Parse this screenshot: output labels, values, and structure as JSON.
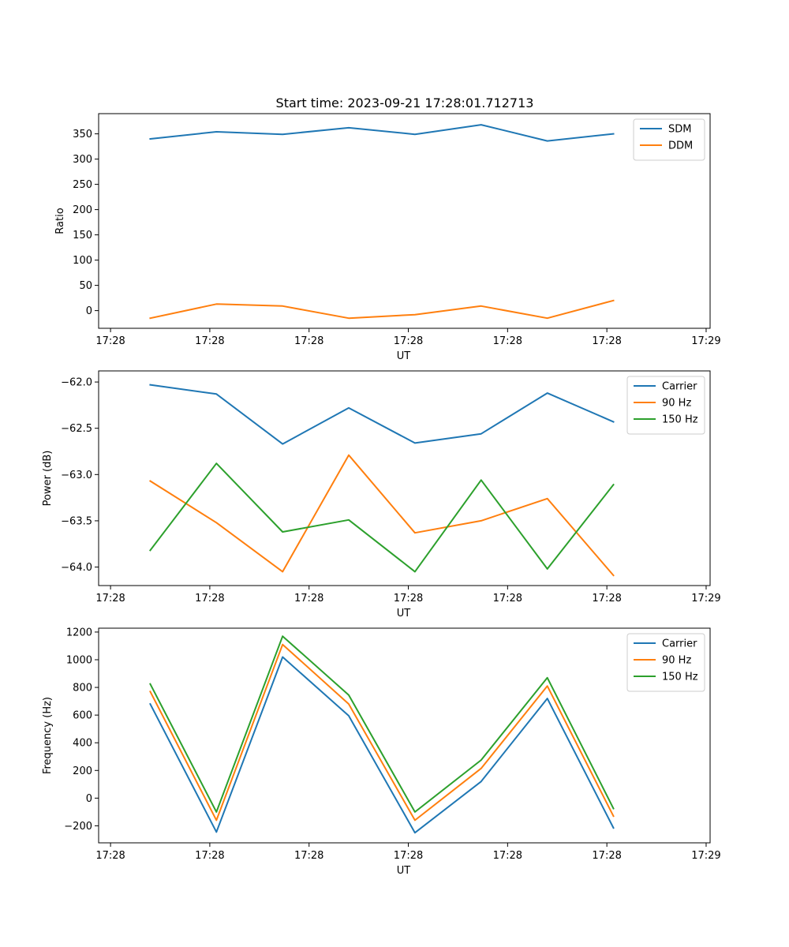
{
  "title": "Start time: 2023-09-21 17:28:01.712713",
  "colors": {
    "blue": "#1f77b4",
    "orange": "#ff7f0e",
    "green": "#2ca02c"
  },
  "chart_data": [
    {
      "type": "line",
      "title": "Start time: 2023-09-21 17:28:01.712713",
      "xlabel": "UT",
      "ylabel": "Ratio",
      "x": [
        0,
        1,
        2,
        3,
        4,
        5,
        6,
        7
      ],
      "xlim": [
        -0.78,
        8.46
      ],
      "x_ticks": [
        -0.6,
        0.9,
        2.4,
        3.9,
        5.4,
        6.9,
        8.4
      ],
      "x_tick_labels": [
        "17:28",
        "17:28",
        "17:28",
        "17:28",
        "17:28",
        "17:28",
        "17:29"
      ],
      "ylim": [
        -35,
        390
      ],
      "y_ticks": [
        0,
        50,
        100,
        150,
        200,
        250,
        300,
        350
      ],
      "y_tick_labels": [
        "0",
        "50",
        "100",
        "150",
        "200",
        "250",
        "300",
        "350"
      ],
      "legend_position": "top-right",
      "series": [
        {
          "name": "SDM",
          "color": "#1f77b4",
          "values": [
            340,
            354,
            349,
            362,
            349,
            368,
            336,
            350
          ]
        },
        {
          "name": "DDM",
          "color": "#ff7f0e",
          "values": [
            -15,
            13,
            9,
            -15,
            -8,
            9,
            -15,
            20
          ]
        }
      ]
    },
    {
      "type": "line",
      "xlabel": "UT",
      "ylabel": "Power (dB)",
      "x": [
        0,
        1,
        2,
        3,
        4,
        5,
        6,
        7
      ],
      "xlim": [
        -0.78,
        8.46
      ],
      "x_ticks": [
        -0.6,
        0.9,
        2.4,
        3.9,
        5.4,
        6.9,
        8.4
      ],
      "x_tick_labels": [
        "17:28",
        "17:28",
        "17:28",
        "17:28",
        "17:28",
        "17:28",
        "17:29"
      ],
      "ylim": [
        -64.2,
        -61.88
      ],
      "y_ticks": [
        -64.0,
        -63.5,
        -63.0,
        -62.5,
        -62.0
      ],
      "y_tick_labels": [
        "−64.0",
        "−63.5",
        "−63.0",
        "−62.5",
        "−62.0"
      ],
      "legend_position": "top-right",
      "series": [
        {
          "name": "Carrier",
          "color": "#1f77b4",
          "values": [
            -62.03,
            -62.13,
            -62.67,
            -62.28,
            -62.66,
            -62.56,
            -62.12,
            -62.43
          ]
        },
        {
          "name": "90 Hz",
          "color": "#ff7f0e",
          "values": [
            -63.07,
            -63.52,
            -64.05,
            -62.79,
            -63.63,
            -63.5,
            -63.26,
            -64.09
          ]
        },
        {
          "name": "150 Hz",
          "color": "#2ca02c",
          "values": [
            -63.82,
            -62.88,
            -63.62,
            -63.49,
            -64.05,
            -63.06,
            -64.02,
            -63.11
          ]
        }
      ]
    },
    {
      "type": "line",
      "xlabel": "UT",
      "ylabel": "Frequency (Hz)",
      "x": [
        0,
        1,
        2,
        3,
        4,
        5,
        6,
        7
      ],
      "xlim": [
        -0.78,
        8.46
      ],
      "x_ticks": [
        -0.6,
        0.9,
        2.4,
        3.9,
        5.4,
        6.9,
        8.4
      ],
      "x_tick_labels": [
        "17:28",
        "17:28",
        "17:28",
        "17:28",
        "17:28",
        "17:28",
        "17:29"
      ],
      "ylim": [
        -323,
        1228
      ],
      "y_ticks": [
        -200,
        0,
        200,
        400,
        600,
        800,
        1000,
        1200
      ],
      "y_tick_labels": [
        "−200",
        "0",
        "200",
        "400",
        "600",
        "800",
        "1000",
        "1200"
      ],
      "legend_position": "top-right",
      "series": [
        {
          "name": "Carrier",
          "color": "#1f77b4",
          "values": [
            680,
            -245,
            1020,
            595,
            -250,
            120,
            720,
            -215
          ]
        },
        {
          "name": "90 Hz",
          "color": "#ff7f0e",
          "values": [
            770,
            -160,
            1110,
            680,
            -160,
            215,
            810,
            -130
          ]
        },
        {
          "name": "150 Hz",
          "color": "#2ca02c",
          "values": [
            825,
            -100,
            1170,
            745,
            -100,
            275,
            870,
            -75
          ]
        }
      ]
    }
  ]
}
